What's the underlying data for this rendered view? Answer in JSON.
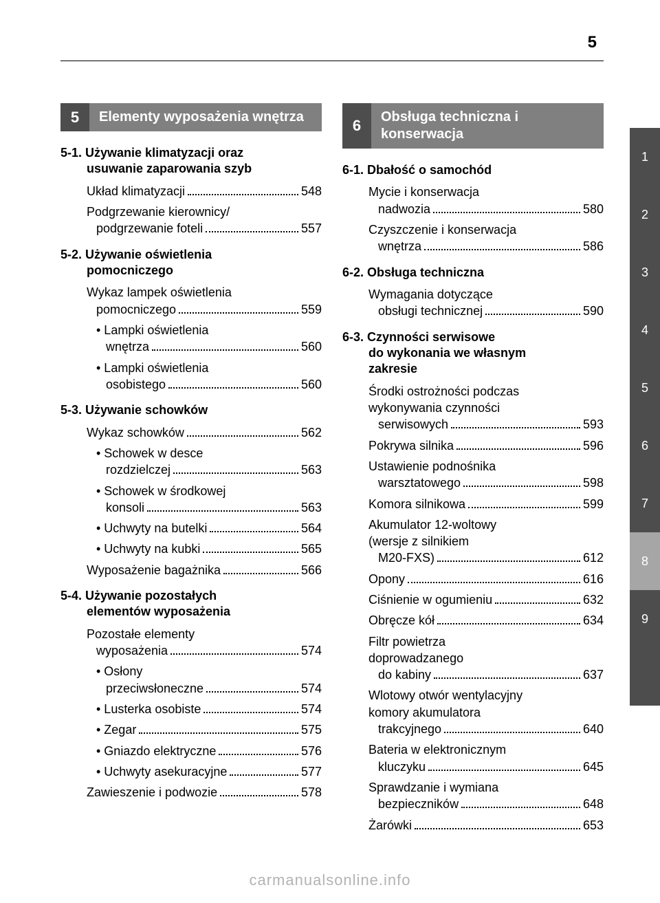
{
  "page_number": "5",
  "footer": "carmanualsonline.info",
  "colors": {
    "tab_dark": "#4d4d4d",
    "tab_light": "#a6a6a6",
    "chapter_num_bg": "#4d4d4d",
    "chapter_title_bg": "#808080",
    "text": "#000000",
    "footer": "#b3b3b3",
    "bg": "#ffffff"
  },
  "tabs": [
    "1",
    "2",
    "3",
    "4",
    "5",
    "6",
    "7",
    "8",
    "9",
    ""
  ],
  "left": {
    "chapter_num": "5",
    "chapter_title": "Elementy wyposażenia wnętrza",
    "sections": [
      {
        "num": "5-1.",
        "title_l1": "Używanie klimatyzacji oraz",
        "title_l2": "usuwanie zaparowania szyb",
        "entries": [
          {
            "text": "Układ klimatyzacji",
            "page": "548"
          },
          {
            "text_l1": "Podgrzewanie kierownicy/",
            "text_l2": "podgrzewanie foteli",
            "page": "557"
          }
        ]
      },
      {
        "num": "5-2.",
        "title_l1": "Używanie oświetlenia",
        "title_l2": "pomocniczego",
        "entries": [
          {
            "text_l1": "Wykaz lampek oświetlenia",
            "text_l2": "pomocniczego",
            "page": "559"
          },
          {
            "sub": true,
            "text_l1": "• Lampki oświetlenia",
            "text_l2": "wnętrza",
            "page": "560"
          },
          {
            "sub": true,
            "text_l1": "• Lampki oświetlenia",
            "text_l2": "osobistego",
            "page": "560"
          }
        ]
      },
      {
        "num": "5-3.",
        "title_l1": "Używanie schowków",
        "entries": [
          {
            "text": "Wykaz schowków",
            "page": "562"
          },
          {
            "sub": true,
            "text_l1": "• Schowek w desce",
            "text_l2": "rozdzielczej",
            "page": "563"
          },
          {
            "sub": true,
            "text_l1": "• Schowek w środkowej",
            "text_l2": "konsoli",
            "page": "563"
          },
          {
            "sub": true,
            "text": "• Uchwyty na butelki",
            "page": "564"
          },
          {
            "sub": true,
            "text": "• Uchwyty na kubki",
            "page": "565"
          },
          {
            "text": "Wyposażenie bagażnika",
            "page": "566"
          }
        ]
      },
      {
        "num": "5-4.",
        "title_l1": "Używanie pozostałych",
        "title_l2": "elementów wyposażenia",
        "entries": [
          {
            "text_l1": "Pozostałe elementy",
            "text_l2": "wyposażenia",
            "page": "574"
          },
          {
            "sub": true,
            "text_l1": "• Osłony",
            "text_l2": "przeciwsłoneczne",
            "page": "574"
          },
          {
            "sub": true,
            "text": "• Lusterka osobiste",
            "page": "574"
          },
          {
            "sub": true,
            "text": "• Zegar",
            "page": "575"
          },
          {
            "sub": true,
            "text": "• Gniazdo elektryczne",
            "page": "576"
          },
          {
            "sub": true,
            "text": "• Uchwyty asekuracyjne",
            "page": "577"
          },
          {
            "text": "Zawieszenie i podwozie",
            "page": "578"
          }
        ]
      }
    ]
  },
  "right": {
    "chapter_num": "6",
    "chapter_title": "Obsługa techniczna i konserwacja",
    "sections": [
      {
        "num": "6-1.",
        "title_l1": "Dbałość o samochód",
        "entries": [
          {
            "text_l1": "Mycie i konserwacja",
            "text_l2": "nadwozia",
            "page": "580"
          },
          {
            "text_l1": "Czyszczenie i konserwacja",
            "text_l2": "wnętrza",
            "page": "586"
          }
        ]
      },
      {
        "num": "6-2.",
        "title_l1": "Obsługa techniczna",
        "entries": [
          {
            "text_l1": "Wymagania dotyczące",
            "text_l2": "obsługi technicznej",
            "page": "590"
          }
        ]
      },
      {
        "num": "6-3.",
        "title_l1": "Czynności serwisowe",
        "title_l2": "do wykonania we własnym",
        "title_l3": "zakresie",
        "entries": [
          {
            "text_l1": "Środki ostrożności podczas",
            "text_l2": "wykonywania czynności",
            "text_l3": "serwisowych",
            "page": "593"
          },
          {
            "text": "Pokrywa silnika",
            "page": "596"
          },
          {
            "text_l1": "Ustawienie podnośnika",
            "text_l2": "warsztatowego",
            "page": "598"
          },
          {
            "text": "Komora silnikowa",
            "page": "599"
          },
          {
            "text_l1": "Akumulator 12-woltowy",
            "text_l2": "(wersje z silnikiem",
            "text_l3": "M20-FXS)",
            "page": "612"
          },
          {
            "text": "Opony",
            "page": "616"
          },
          {
            "text": "Ciśnienie w ogumieniu",
            "page": "632"
          },
          {
            "text": "Obręcze kół",
            "page": "634"
          },
          {
            "text_l1": "Filtr powietrza",
            "text_l2": "doprowadzanego",
            "text_l3": "do kabiny",
            "page": "637"
          },
          {
            "text_l1": "Wlotowy otwór wentylacyjny",
            "text_l2": "komory akumulatora",
            "text_l3": "trakcyjnego",
            "page": "640"
          },
          {
            "text_l1": "Bateria w elektronicznym",
            "text_l2": "kluczyku",
            "page": "645"
          },
          {
            "text_l1": "Sprawdzanie i wymiana",
            "text_l2": "bezpieczników",
            "page": "648"
          },
          {
            "text": "Żarówki",
            "page": "653"
          }
        ]
      }
    ]
  }
}
